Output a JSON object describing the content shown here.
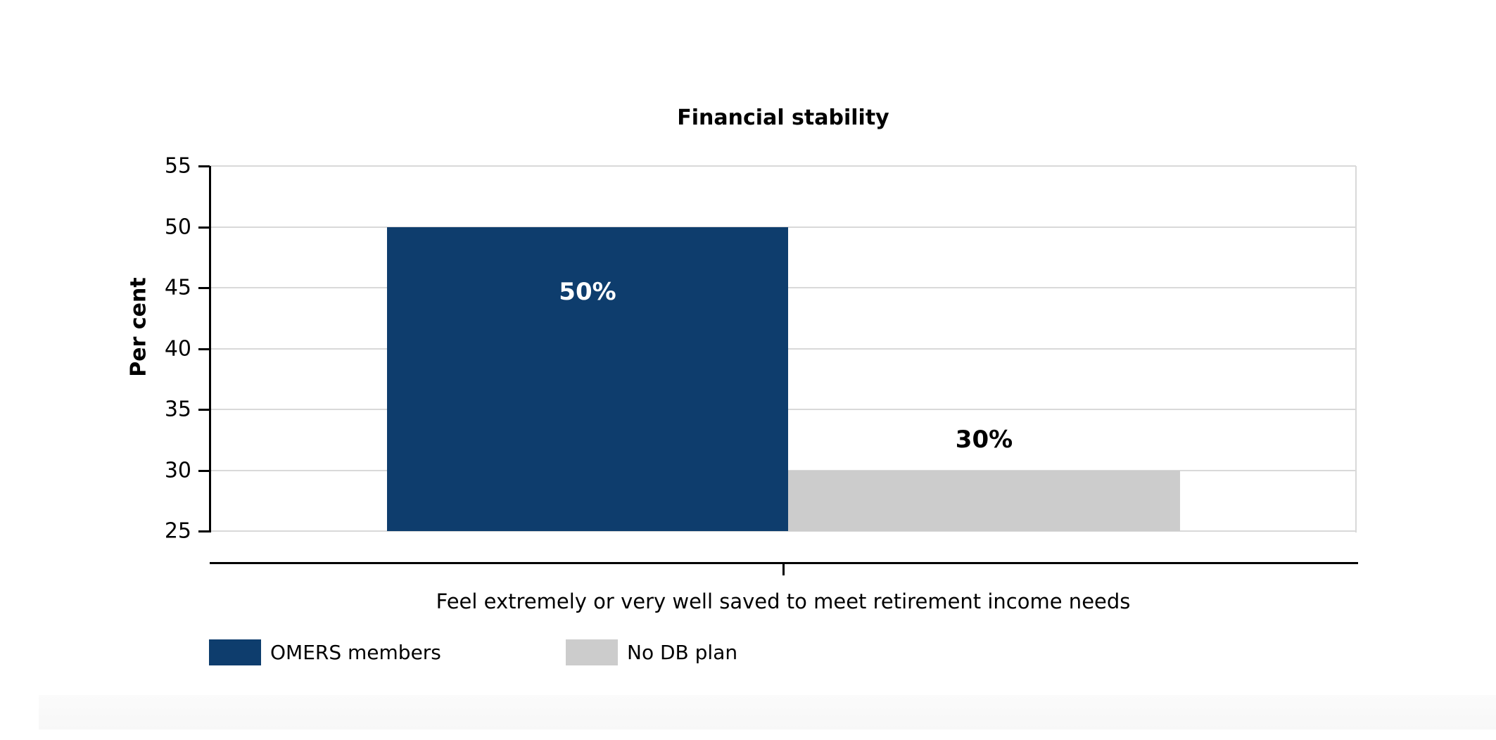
{
  "chart_data": {
    "type": "bar",
    "title": "Financial stability",
    "ylabel": "Per cent",
    "xlabel": "",
    "ylim": [
      25,
      55
    ],
    "yticks": [
      55,
      50,
      45,
      40,
      35,
      30,
      25
    ],
    "grid": true,
    "legend_position": "bottom-left",
    "categories": [
      "Feel extremely or very well saved to meet retirement income needs"
    ],
    "series": [
      {
        "name": "OMERS members",
        "values": [
          50
        ],
        "data_label": "50%",
        "color": "#0e3d6d",
        "label_color": "#ffffff",
        "label_position": "inside"
      },
      {
        "name": "No DB plan",
        "values": [
          30
        ],
        "data_label": "30%",
        "color": "#cccccc",
        "label_color": "#000000",
        "label_position": "above"
      }
    ]
  },
  "colors": {
    "bar_navy": "#0e3d6d",
    "bar_gray": "#cccccc",
    "gridline": "#d9d9d9",
    "axis": "#000000",
    "background": "#ffffff",
    "footer_band": "#f9f9f9"
  }
}
